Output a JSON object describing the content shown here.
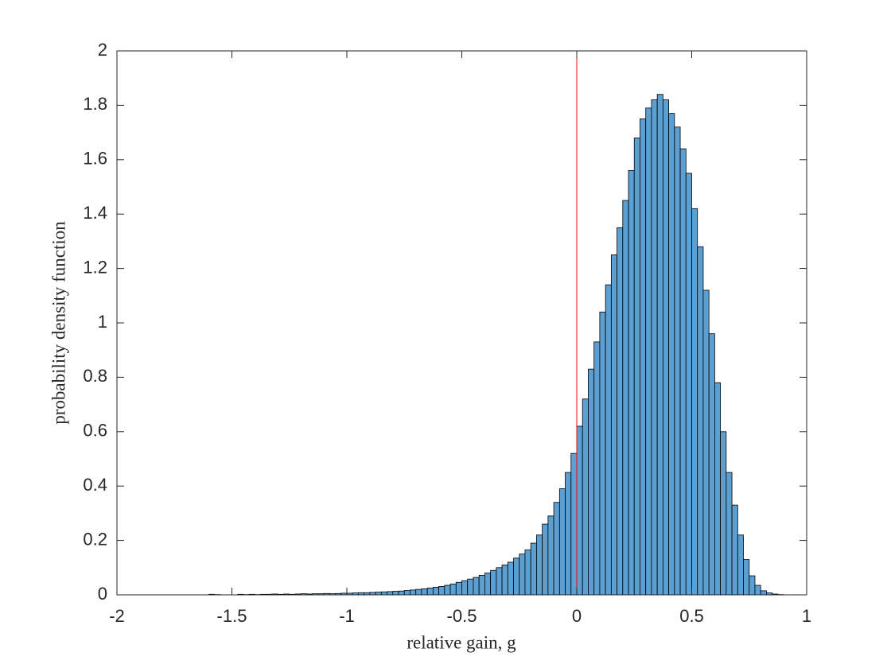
{
  "chart_data": {
    "type": "histogram",
    "xlabel": "relative gain, g",
    "ylabel": "probability density function",
    "bins": [
      -1.6,
      -1.575,
      -1.55,
      -1.525,
      -1.5,
      -1.475,
      -1.45,
      -1.425,
      -1.4,
      -1.375,
      -1.35,
      -1.325,
      -1.3,
      -1.275,
      -1.25,
      -1.225,
      -1.2,
      -1.175,
      -1.15,
      -1.125,
      -1.1,
      -1.075,
      -1.05,
      -1.025,
      -1.0,
      -0.975,
      -0.95,
      -0.925,
      -0.9,
      -0.875,
      -0.85,
      -0.825,
      -0.8,
      -0.775,
      -0.75,
      -0.725,
      -0.7,
      -0.675,
      -0.65,
      -0.625,
      -0.6,
      -0.575,
      -0.55,
      -0.525,
      -0.5,
      -0.475,
      -0.45,
      -0.425,
      -0.4,
      -0.375,
      -0.35,
      -0.325,
      -0.3,
      -0.275,
      -0.25,
      -0.225,
      -0.2,
      -0.175,
      -0.15,
      -0.125,
      -0.1,
      -0.075,
      -0.05,
      -0.025,
      0,
      0.025,
      0.05,
      0.075,
      0.1,
      0.125,
      0.15,
      0.175,
      0.2,
      0.225,
      0.25,
      0.275,
      0.3,
      0.325,
      0.35,
      0.375,
      0.4,
      0.425,
      0.45,
      0.475,
      0.5,
      0.525,
      0.55,
      0.575,
      0.6,
      0.625,
      0.65,
      0.675,
      0.7,
      0.725,
      0.75,
      0.775,
      0.8,
      0.825,
      0.85,
      0.875,
      0.9
    ],
    "values": [
      0.002,
      0.001,
      0,
      0,
      0,
      0.002,
      0.001,
      0.002,
      0.001,
      0.002,
      0.002,
      0.003,
      0.002,
      0.003,
      0.002,
      0.003,
      0.004,
      0.003,
      0.004,
      0.004,
      0.005,
      0.004,
      0.005,
      0.006,
      0.006,
      0.007,
      0.008,
      0.008,
      0.009,
      0.01,
      0.011,
      0.012,
      0.013,
      0.014,
      0.016,
      0.018,
      0.02,
      0.022,
      0.025,
      0.028,
      0.031,
      0.035,
      0.04,
      0.046,
      0.052,
      0.058,
      0.064,
      0.072,
      0.08,
      0.09,
      0.1,
      0.11,
      0.12,
      0.135,
      0.15,
      0.165,
      0.19,
      0.22,
      0.26,
      0.29,
      0.34,
      0.39,
      0.45,
      0.52,
      0.62,
      0.72,
      0.83,
      0.93,
      1.04,
      1.14,
      1.25,
      1.35,
      1.45,
      1.56,
      1.68,
      1.75,
      1.79,
      1.82,
      1.84,
      1.82,
      1.77,
      1.72,
      1.64,
      1.55,
      1.42,
      1.28,
      1.12,
      0.96,
      0.78,
      0.6,
      0.45,
      0.33,
      0.22,
      0.13,
      0.07,
      0.035,
      0.015,
      0.007,
      0.003,
      0.001
    ],
    "color": "#5b9fd3",
    "edgecolor": "#000000",
    "reference_line": {
      "x": 0,
      "color": "#ff0000"
    },
    "xlim": [
      -2,
      1
    ],
    "xticks": [
      -2,
      -1.5,
      -1,
      -0.5,
      0,
      0.5,
      1
    ],
    "ylim": [
      0,
      2
    ],
    "yticks": [
      0,
      0.2,
      0.4,
      0.6,
      0.8,
      1,
      1.2,
      1.4,
      1.6,
      1.8,
      2
    ]
  }
}
